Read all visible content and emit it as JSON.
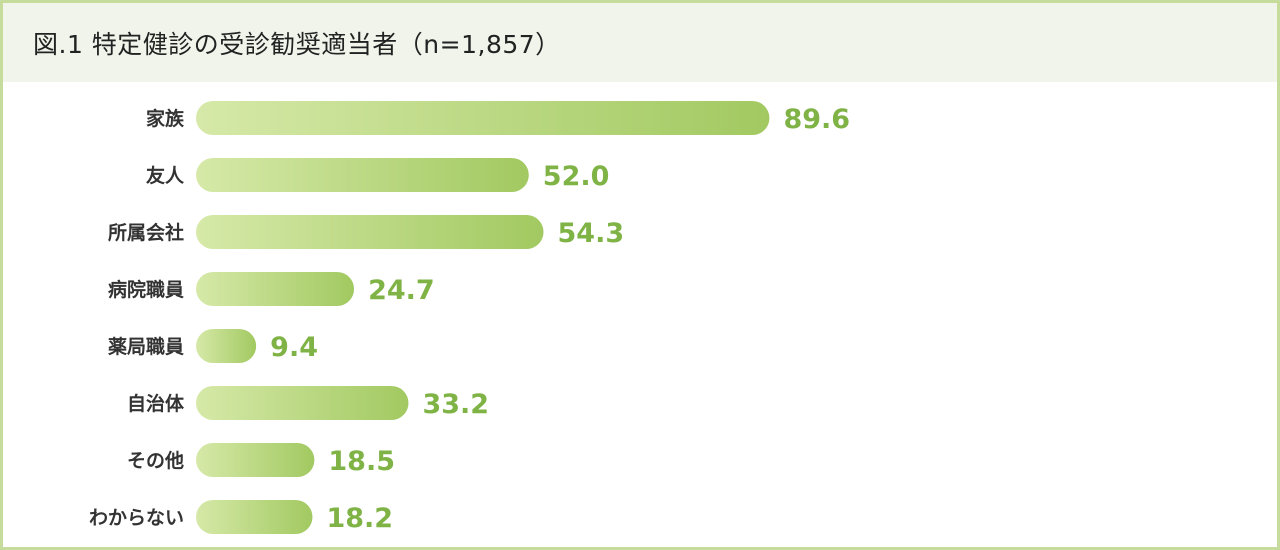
{
  "chart_data": {
    "type": "bar",
    "orientation": "horizontal",
    "title": "図.1 特定健診の受診勧奨適当者（n=1,857）",
    "categories": [
      "家族",
      "友人",
      "所属会社",
      "病院職員",
      "薬局職員",
      "自治体",
      "その他",
      "わからない"
    ],
    "values": [
      89.6,
      52.0,
      54.3,
      24.7,
      9.4,
      33.2,
      18.5,
      18.2
    ],
    "value_labels": [
      "89.6",
      "52.0",
      "54.3",
      "24.7",
      "9.4",
      "33.2",
      "18.5",
      "18.2"
    ],
    "xlim": [
      0,
      100
    ],
    "grid": false,
    "legend": "none",
    "colors": {
      "bar_start": "#d6e9a8",
      "bar_end": "#a2c961",
      "value_text": "#7fb346",
      "category_text": "#333333",
      "title_bg": "#f0f4ea",
      "border": "#c5dc9c"
    }
  }
}
